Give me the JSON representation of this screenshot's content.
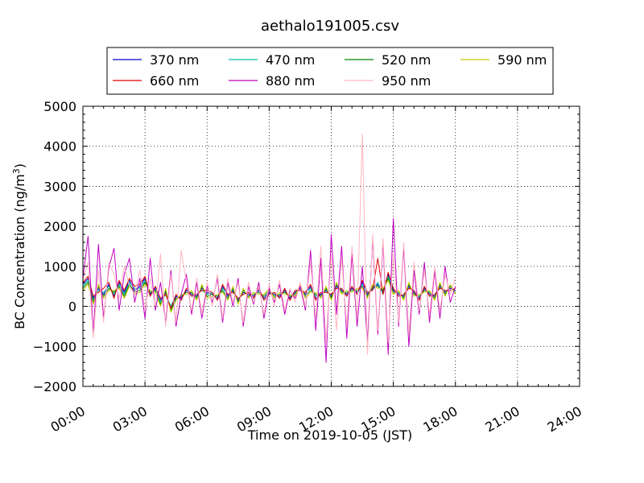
{
  "chart_data": {
    "type": "line",
    "title": "aethalo191005.csv",
    "xlabel": "Time on 2019-10-05 (JST)",
    "ylabel_main": "BC Concentration (ng/m",
    "ylabel_sup": "3",
    "ylabel_end": ")",
    "xlim": [
      "00:00",
      "24:00"
    ],
    "ylim": [
      -2000,
      5000
    ],
    "x_ticks": [
      "00:00",
      "03:00",
      "06:00",
      "09:00",
      "12:00",
      "15:00",
      "18:00",
      "21:00",
      "24:00"
    ],
    "y_ticks": [
      "−2000",
      "−1000",
      "0",
      "1000",
      "2000",
      "3000",
      "4000",
      "5000"
    ],
    "grid": true,
    "legend_position": "top",
    "x_hours": [
      0.0,
      0.25,
      0.5,
      0.75,
      1.0,
      1.25,
      1.5,
      1.75,
      2.0,
      2.25,
      2.5,
      2.75,
      3.0,
      3.25,
      3.5,
      3.75,
      4.0,
      4.25,
      4.5,
      4.75,
      5.0,
      5.25,
      5.5,
      5.75,
      6.0,
      6.25,
      6.5,
      6.75,
      7.0,
      7.25,
      7.5,
      7.75,
      8.0,
      8.25,
      8.5,
      8.75,
      9.0,
      9.25,
      9.5,
      9.75,
      10.0,
      10.25,
      10.5,
      10.75,
      11.0,
      11.25,
      11.5,
      11.75,
      12.0,
      12.25,
      12.5,
      12.75,
      13.0,
      13.25,
      13.5,
      13.75,
      14.0,
      14.25,
      14.5,
      14.75,
      15.0,
      15.25,
      15.5,
      15.75,
      16.0,
      16.25,
      16.5,
      16.75,
      17.0,
      17.25,
      17.5,
      17.75,
      18.0
    ],
    "series": [
      {
        "name": "370 nm",
        "color": "#0000cc",
        "values": [
          550,
          700,
          200,
          450,
          300,
          550,
          250,
          600,
          350,
          650,
          400,
          500,
          700,
          300,
          450,
          150,
          350,
          -50,
          250,
          200,
          400,
          300,
          250,
          450,
          350,
          300,
          200,
          500,
          250,
          400,
          150,
          350,
          300,
          250,
          400,
          200,
          350,
          300,
          250,
          400,
          200,
          350,
          450,
          300,
          500,
          200,
          300,
          400,
          250,
          500,
          400,
          300,
          450,
          350,
          600,
          300,
          450,
          550,
          350,
          800,
          400,
          300,
          250,
          500,
          350,
          200,
          450,
          300,
          250,
          500,
          350,
          450,
          400
        ]
      },
      {
        "name": "470 nm",
        "color": "#00c0a8",
        "values": [
          500,
          650,
          150,
          400,
          350,
          500,
          300,
          550,
          300,
          600,
          450,
          450,
          650,
          250,
          500,
          100,
          300,
          0,
          300,
          150,
          450,
          250,
          300,
          400,
          300,
          350,
          150,
          450,
          300,
          350,
          200,
          300,
          350,
          200,
          450,
          150,
          300,
          350,
          200,
          450,
          150,
          400,
          400,
          350,
          450,
          250,
          350,
          350,
          300,
          450,
          450,
          250,
          500,
          300,
          550,
          350,
          400,
          600,
          300,
          750,
          450,
          250,
          300,
          450,
          400,
          150,
          500,
          250,
          300,
          450,
          400,
          400,
          450
        ]
      },
      {
        "name": "520 nm",
        "color": "#008000",
        "values": [
          450,
          600,
          100,
          500,
          250,
          450,
          350,
          500,
          250,
          550,
          350,
          400,
          600,
          350,
          400,
          50,
          400,
          -100,
          200,
          250,
          350,
          350,
          200,
          500,
          250,
          300,
          250,
          400,
          200,
          450,
          100,
          400,
          250,
          300,
          350,
          250,
          400,
          250,
          300,
          350,
          250,
          300,
          500,
          250,
          400,
          300,
          250,
          450,
          200,
          550,
          350,
          350,
          400,
          400,
          500,
          250,
          500,
          500,
          400,
          700,
          350,
          350,
          200,
          550,
          300,
          250,
          400,
          350,
          200,
          550,
          300,
          500,
          350
        ]
      },
      {
        "name": "590 nm",
        "color": "#c8c800",
        "values": [
          400,
          550,
          50,
          550,
          200,
          400,
          400,
          450,
          200,
          500,
          300,
          350,
          550,
          400,
          350,
          0,
          450,
          -150,
          150,
          300,
          300,
          400,
          150,
          550,
          200,
          250,
          300,
          350,
          150,
          500,
          50,
          450,
          200,
          350,
          300,
          300,
          450,
          200,
          350,
          300,
          300,
          250,
          550,
          200,
          350,
          350,
          200,
          500,
          150,
          600,
          300,
          400,
          350,
          450,
          450,
          200,
          550,
          450,
          450,
          650,
          300,
          400,
          150,
          600,
          250,
          300,
          350,
          400,
          150,
          600,
          250,
          550,
          300
        ]
      },
      {
        "name": "660 nm",
        "color": "#e00000",
        "values": [
          600,
          750,
          250,
          350,
          450,
          600,
          200,
          650,
          400,
          700,
          500,
          550,
          750,
          250,
          500,
          200,
          300,
          -50,
          300,
          150,
          450,
          250,
          300,
          400,
          400,
          350,
          150,
          550,
          300,
          350,
          200,
          300,
          350,
          200,
          450,
          150,
          300,
          350,
          200,
          450,
          150,
          400,
          400,
          350,
          550,
          150,
          350,
          350,
          300,
          450,
          450,
          250,
          500,
          300,
          650,
          350,
          400,
          1200,
          300,
          850,
          450,
          250,
          300,
          450,
          400,
          150,
          500,
          250,
          300,
          450,
          400,
          400,
          450
        ]
      },
      {
        "name": "880 nm",
        "color": "#c000c0",
        "values": [
          700,
          1750,
          -700,
          1550,
          -300,
          950,
          1450,
          -100,
          800,
          1200,
          100,
          700,
          -300,
          1200,
          -100,
          600,
          -400,
          900,
          -500,
          300,
          800,
          -200,
          600,
          -300,
          500,
          100,
          700,
          -400,
          600,
          0,
          700,
          -500,
          500,
          50,
          600,
          -300,
          450,
          100,
          550,
          -200,
          400,
          200,
          500,
          -100,
          1400,
          -600,
          1200,
          -1400,
          1800,
          -200,
          1500,
          -800,
          1300,
          -500,
          1000,
          -900,
          1700,
          -700,
          1600,
          -1200,
          2200,
          -500,
          1500,
          -1000,
          900,
          -200,
          1100,
          -400,
          900,
          -300,
          1000,
          100,
          500
        ]
      },
      {
        "name": "950 nm",
        "color": "#ffb6c1",
        "values": [
          650,
          1100,
          -800,
          900,
          -400,
          1100,
          800,
          200,
          1000,
          500,
          300,
          900,
          -100,
          700,
          0,
          1300,
          -500,
          800,
          -400,
          1400,
          600,
          -100,
          700,
          -200,
          600,
          0,
          800,
          -300,
          700,
          100,
          600,
          -400,
          600,
          100,
          500,
          -200,
          550,
          0,
          650,
          -100,
          450,
          100,
          600,
          0,
          1100,
          -300,
          1500,
          -900,
          1300,
          -600,
          1200,
          -500,
          1500,
          -300,
          4300,
          -1200,
          1800,
          -600,
          1700,
          -900,
          1300,
          -400,
          1600,
          -700,
          1100,
          -100,
          900,
          -200,
          1000,
          -100,
          800,
          300,
          700
        ]
      }
    ]
  }
}
